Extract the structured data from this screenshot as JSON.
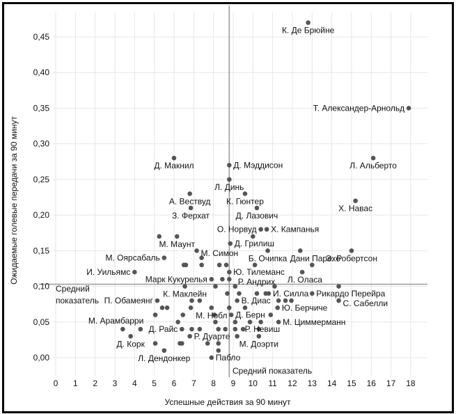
{
  "chart_data": {
    "type": "scatter",
    "title": "",
    "xlabel": "Успешные действия за 90 минут",
    "ylabel": "Ожидаемые голевые передачи за 90 минут",
    "xlim": [
      0,
      18
    ],
    "ylim": [
      0,
      0.47
    ],
    "xticks": [
      "0",
      "1",
      "2",
      "3",
      "4",
      "5",
      "6",
      "7",
      "8",
      "9",
      "10",
      "11",
      "12",
      "13",
      "14",
      "15",
      "16",
      "17",
      "18"
    ],
    "yticks": [
      "0,00",
      "0,05",
      "0,10",
      "0,15",
      "0,20",
      "0,25",
      "0,30",
      "0,35",
      "0,40",
      "0,45"
    ],
    "ytick_values": [
      0,
      0.05,
      0.1,
      0.15,
      0.2,
      0.25,
      0.3,
      0.35,
      0.4,
      0.45
    ],
    "grid": true,
    "point_color": "#555555",
    "mean_line_color": "#999999",
    "mean_x": 8.8,
    "mean_y": 0.103,
    "mean_x_label": "Средний показатель",
    "mean_y_label_line1": "Средний",
    "mean_y_label_line2": "показатель",
    "points": [
      {
        "x": 12.8,
        "y": 0.47,
        "label": "К. Де Брюйне",
        "pos": "below"
      },
      {
        "x": 17.9,
        "y": 0.35,
        "label": "Т. Александер-Арнольд",
        "pos": "left"
      },
      {
        "x": 16.1,
        "y": 0.28,
        "label": "Л. Альберто",
        "pos": "below"
      },
      {
        "x": 15.2,
        "y": 0.22,
        "label": "Х. Навас",
        "pos": "below"
      },
      {
        "x": 15.0,
        "y": 0.15,
        "label": "Э. Робертсон",
        "pos": "below"
      },
      {
        "x": 6.0,
        "y": 0.28,
        "label": "Д. Макнил",
        "pos": "below"
      },
      {
        "x": 8.8,
        "y": 0.27,
        "label": "Д. Мэддисон",
        "pos": "right"
      },
      {
        "x": 8.8,
        "y": 0.25,
        "label": "Л. Динь",
        "pos": "below"
      },
      {
        "x": 9.6,
        "y": 0.23,
        "label": "К. Гюнтер",
        "pos": "below"
      },
      {
        "x": 6.8,
        "y": 0.23,
        "label": "А. Вествуд",
        "pos": "below"
      },
      {
        "x": 6.85,
        "y": 0.21,
        "label": "З. Ферхат",
        "pos": "below"
      },
      {
        "x": 10.2,
        "y": 0.21,
        "label": "Д. Лазович",
        "pos": "below"
      },
      {
        "x": 10.4,
        "y": 0.18,
        "label": "О. Норвуд",
        "pos": "left"
      },
      {
        "x": 10.7,
        "y": 0.18,
        "label": "Х. Кампанья",
        "pos": "right"
      },
      {
        "x": 10.0,
        "y": 0.17,
        "label": "",
        "pos": ""
      },
      {
        "x": 8.85,
        "y": 0.16,
        "label": "Д. Грилиш",
        "pos": "right"
      },
      {
        "x": 10.75,
        "y": 0.15,
        "label": "Б. Очипка",
        "pos": "below"
      },
      {
        "x": 12.4,
        "y": 0.15,
        "label": "Дани Парехо",
        "pos": "below"
      },
      {
        "x": 10.1,
        "y": 0.13,
        "label": "",
        "pos": ""
      },
      {
        "x": 13.0,
        "y": 0.13,
        "label": "",
        "pos": ""
      },
      {
        "x": 8.8,
        "y": 0.12,
        "label": "Ю. Тилеманс",
        "pos": "right"
      },
      {
        "x": 12.5,
        "y": 0.12,
        "label": "Л. Оласа",
        "pos": "below"
      },
      {
        "x": 9.1,
        "y": 0.1,
        "label": "Р. Андрих",
        "pos": "above-right"
      },
      {
        "x": 11.1,
        "y": 0.1,
        "label": "",
        "pos": ""
      },
      {
        "x": 14.35,
        "y": 0.1,
        "label": "",
        "pos": ""
      },
      {
        "x": 10.8,
        "y": 0.09,
        "label": "И. Силла",
        "pos": "right"
      },
      {
        "x": 13.0,
        "y": 0.09,
        "label": "Рикардо Перейра",
        "pos": "right"
      },
      {
        "x": 14.35,
        "y": 0.08,
        "label": "С. Сабелли",
        "pos": "right"
      },
      {
        "x": 9.2,
        "y": 0.08,
        "label": "В. Диас",
        "pos": "right"
      },
      {
        "x": 11.3,
        "y": 0.08,
        "label": "",
        "pos": ""
      },
      {
        "x": 11.65,
        "y": 0.08,
        "label": "",
        "pos": ""
      },
      {
        "x": 11.95,
        "y": 0.08,
        "label": "",
        "pos": ""
      },
      {
        "x": 11.25,
        "y": 0.07,
        "label": "Ю. Берчиче",
        "pos": "right"
      },
      {
        "x": 8.9,
        "y": 0.06,
        "label": "Д. Берн",
        "pos": "right"
      },
      {
        "x": 10.9,
        "y": 0.06,
        "label": "",
        "pos": ""
      },
      {
        "x": 11.3,
        "y": 0.05,
        "label": "М. Циммерманн",
        "pos": "right"
      },
      {
        "x": 9.5,
        "y": 0.04,
        "label": "Р. Невиш",
        "pos": "right"
      },
      {
        "x": 10.3,
        "y": 0.03,
        "label": "М. Доэрти",
        "pos": "below"
      },
      {
        "x": 7.9,
        "y": 0.0,
        "label": "Пабло",
        "pos": "right"
      },
      {
        "x": 6.8,
        "y": 0.03,
        "label": "Р. Дуарте",
        "pos": "right"
      },
      {
        "x": 6.4,
        "y": 0.04,
        "label": "Д. Райс",
        "pos": "left"
      },
      {
        "x": 7.9,
        "y": 0.07,
        "label": "М. Нобл",
        "pos": "below"
      },
      {
        "x": 6.55,
        "y": 0.1,
        "label": "К. Маклейн",
        "pos": "below"
      },
      {
        "x": 7.9,
        "y": 0.11,
        "label": "Марк Кукурелья",
        "pos": "left"
      },
      {
        "x": 5.15,
        "y": 0.08,
        "label": "П. Обамеянг",
        "pos": "left"
      },
      {
        "x": 3.4,
        "y": 0.04,
        "label": "М. Арамбарри",
        "pos": "above-left"
      },
      {
        "x": 3.8,
        "y": 0.03,
        "label": "Д. Корк",
        "pos": "below"
      },
      {
        "x": 5.5,
        "y": 0.01,
        "label": "Л. Дендонкер",
        "pos": "below"
      },
      {
        "x": 4.0,
        "y": 0.12,
        "label": "И. Уильямс",
        "pos": "left"
      },
      {
        "x": 5.5,
        "y": 0.14,
        "label": "М. Оярсабаль",
        "pos": "left"
      },
      {
        "x": 6.15,
        "y": 0.17,
        "label": "М. Маунт",
        "pos": "below"
      },
      {
        "x": 5.25,
        "y": 0.17,
        "label": "",
        "pos": ""
      },
      {
        "x": 7.15,
        "y": 0.15,
        "label": "М. Симон",
        "pos": "right"
      },
      {
        "x": 7.4,
        "y": 0.14,
        "label": "",
        "pos": ""
      },
      {
        "x": 6.5,
        "y": 0.13,
        "label": "",
        "pos": ""
      },
      {
        "x": 6.6,
        "y": 0.13,
        "label": "",
        "pos": ""
      },
      {
        "x": 7.4,
        "y": 0.13,
        "label": "",
        "pos": ""
      },
      {
        "x": 8.3,
        "y": 0.13,
        "label": "",
        "pos": ""
      },
      {
        "x": 8.65,
        "y": 0.13,
        "label": "",
        "pos": ""
      },
      {
        "x": 8.45,
        "y": 0.11,
        "label": "",
        "pos": ""
      },
      {
        "x": 8.8,
        "y": 0.11,
        "label": "",
        "pos": ""
      },
      {
        "x": 8.1,
        "y": 0.1,
        "label": "",
        "pos": ""
      },
      {
        "x": 8.7,
        "y": 0.09,
        "label": "",
        "pos": ""
      },
      {
        "x": 9.3,
        "y": 0.09,
        "label": "",
        "pos": ""
      },
      {
        "x": 10.2,
        "y": 0.09,
        "label": "",
        "pos": ""
      },
      {
        "x": 10.65,
        "y": 0.09,
        "label": "",
        "pos": ""
      },
      {
        "x": 6.9,
        "y": 0.08,
        "label": "",
        "pos": ""
      },
      {
        "x": 7.3,
        "y": 0.08,
        "label": "",
        "pos": ""
      },
      {
        "x": 5.4,
        "y": 0.07,
        "label": "",
        "pos": ""
      },
      {
        "x": 5.65,
        "y": 0.07,
        "label": "",
        "pos": ""
      },
      {
        "x": 6.85,
        "y": 0.07,
        "label": "",
        "pos": ""
      },
      {
        "x": 8.8,
        "y": 0.07,
        "label": "",
        "pos": ""
      },
      {
        "x": 9.6,
        "y": 0.07,
        "label": "",
        "pos": ""
      },
      {
        "x": 5.05,
        "y": 0.06,
        "label": "",
        "pos": ""
      },
      {
        "x": 6.45,
        "y": 0.06,
        "label": "",
        "pos": ""
      },
      {
        "x": 8.05,
        "y": 0.06,
        "label": "",
        "pos": ""
      },
      {
        "x": 6.2,
        "y": 0.05,
        "label": "",
        "pos": ""
      },
      {
        "x": 8.1,
        "y": 0.05,
        "label": "",
        "pos": ""
      },
      {
        "x": 9.1,
        "y": 0.05,
        "label": "",
        "pos": ""
      },
      {
        "x": 9.85,
        "y": 0.05,
        "label": "",
        "pos": ""
      },
      {
        "x": 10.4,
        "y": 0.05,
        "label": "",
        "pos": ""
      },
      {
        "x": 4.3,
        "y": 0.04,
        "label": "",
        "pos": ""
      },
      {
        "x": 6.9,
        "y": 0.04,
        "label": "",
        "pos": ""
      },
      {
        "x": 7.3,
        "y": 0.04,
        "label": "",
        "pos": ""
      },
      {
        "x": 8.25,
        "y": 0.04,
        "label": "",
        "pos": ""
      },
      {
        "x": 8.6,
        "y": 0.04,
        "label": "",
        "pos": ""
      },
      {
        "x": 9.1,
        "y": 0.04,
        "label": "",
        "pos": ""
      },
      {
        "x": 10.3,
        "y": 0.04,
        "label": "",
        "pos": ""
      },
      {
        "x": 9.2,
        "y": 0.03,
        "label": "",
        "pos": ""
      },
      {
        "x": 5.05,
        "y": 0.02,
        "label": "",
        "pos": ""
      },
      {
        "x": 6.3,
        "y": 0.02,
        "label": "",
        "pos": ""
      },
      {
        "x": 6.4,
        "y": 0.02,
        "label": "",
        "pos": ""
      },
      {
        "x": 7.7,
        "y": 0.02,
        "label": "",
        "pos": ""
      },
      {
        "x": 8.25,
        "y": 0.02,
        "label": "",
        "pos": ""
      },
      {
        "x": 8.25,
        "y": 0.01,
        "label": "",
        "pos": ""
      }
    ]
  }
}
